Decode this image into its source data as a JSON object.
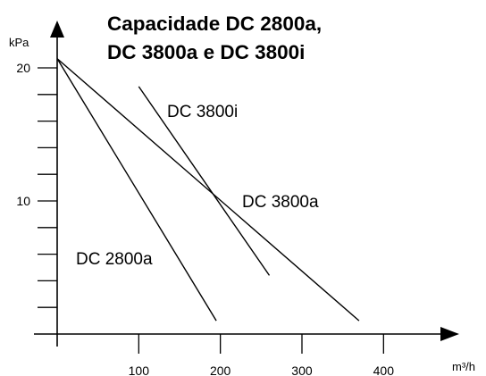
{
  "chart_data": {
    "type": "line",
    "title_lines": [
      "Capacidade DC 2800a,",
      "DC 3800a e DC 3800i"
    ],
    "xlabel": "m³/h",
    "ylabel": "kPa",
    "xlim": [
      0,
      450
    ],
    "ylim": [
      0,
      21
    ],
    "x_ticks": [
      100,
      200,
      300,
      400
    ],
    "x_tick_labels": [
      "100",
      "200",
      "300",
      "400"
    ],
    "y_ticks": [
      20,
      10
    ],
    "y_tick_labels": [
      "20",
      "10"
    ],
    "y_minor_ticks": [
      2,
      4,
      6,
      8,
      10,
      12,
      14,
      16,
      18,
      20
    ],
    "grid": false,
    "series": [
      {
        "name": "DC 2800a",
        "points": [
          [
            0,
            20.7
          ],
          [
            195,
            1
          ]
        ]
      },
      {
        "name": "DC 3800a",
        "points": [
          [
            0,
            20.7
          ],
          [
            370,
            1
          ]
        ]
      },
      {
        "name": "DC 3800i",
        "points": [
          [
            100,
            18.6
          ],
          [
            260,
            4.4
          ]
        ]
      }
    ]
  }
}
